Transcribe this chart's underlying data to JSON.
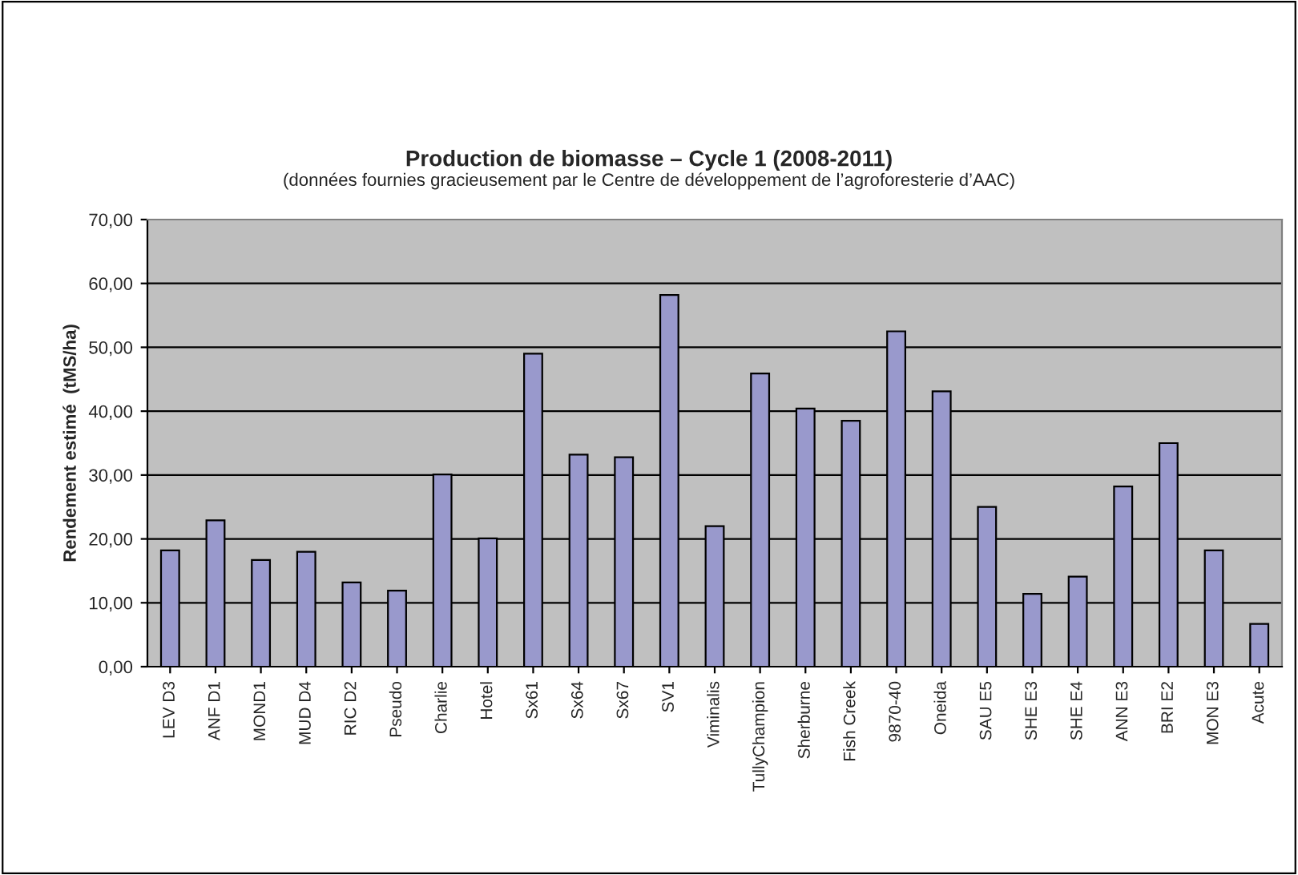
{
  "chart_data": {
    "type": "bar",
    "title": "Production de biomasse – Cycle 1 (2008-2011)",
    "subtitle": "(données fournies gracieusement par le Centre de développement de l’agroforesterie d’AAC)",
    "ylabel": "Rendement estimé  (tMS/ha)",
    "categories": [
      "LEV D3",
      "ANF D1",
      "MOND1",
      "MUD D4",
      "RIC D2",
      "Pseudo",
      "Charlie",
      "Hotel",
      "Sx61",
      "Sx64",
      "Sx67",
      "SV1",
      "Viminalis",
      "TullyChampion",
      "Sherburne",
      "Fish Creek",
      "9870-40",
      "Oneida",
      "SAU E5",
      "SHE E3",
      "SHE E4",
      "ANN E3",
      "BRI E2",
      "MON E3",
      "Acute"
    ],
    "values": [
      18.2,
      22.9,
      16.7,
      18.0,
      13.2,
      11.9,
      30.1,
      20.1,
      49.0,
      33.2,
      32.8,
      58.2,
      22.0,
      45.9,
      40.4,
      38.5,
      52.5,
      43.1,
      25.0,
      11.4,
      14.1,
      28.2,
      35.0,
      18.2,
      6.7
    ],
    "color": "#9999cc",
    "ylim": [
      0,
      70
    ],
    "yticks": [
      {
        "value": 0,
        "label": "0,00"
      },
      {
        "value": 10,
        "label": "10,00"
      },
      {
        "value": 20,
        "label": "20,00"
      },
      {
        "value": 30,
        "label": "30,00"
      },
      {
        "value": 40,
        "label": "40,00"
      },
      {
        "value": 50,
        "label": "50,00"
      },
      {
        "value": 60,
        "label": "60,00"
      },
      {
        "value": 70,
        "label": "70,00"
      }
    ],
    "grid": "y"
  }
}
